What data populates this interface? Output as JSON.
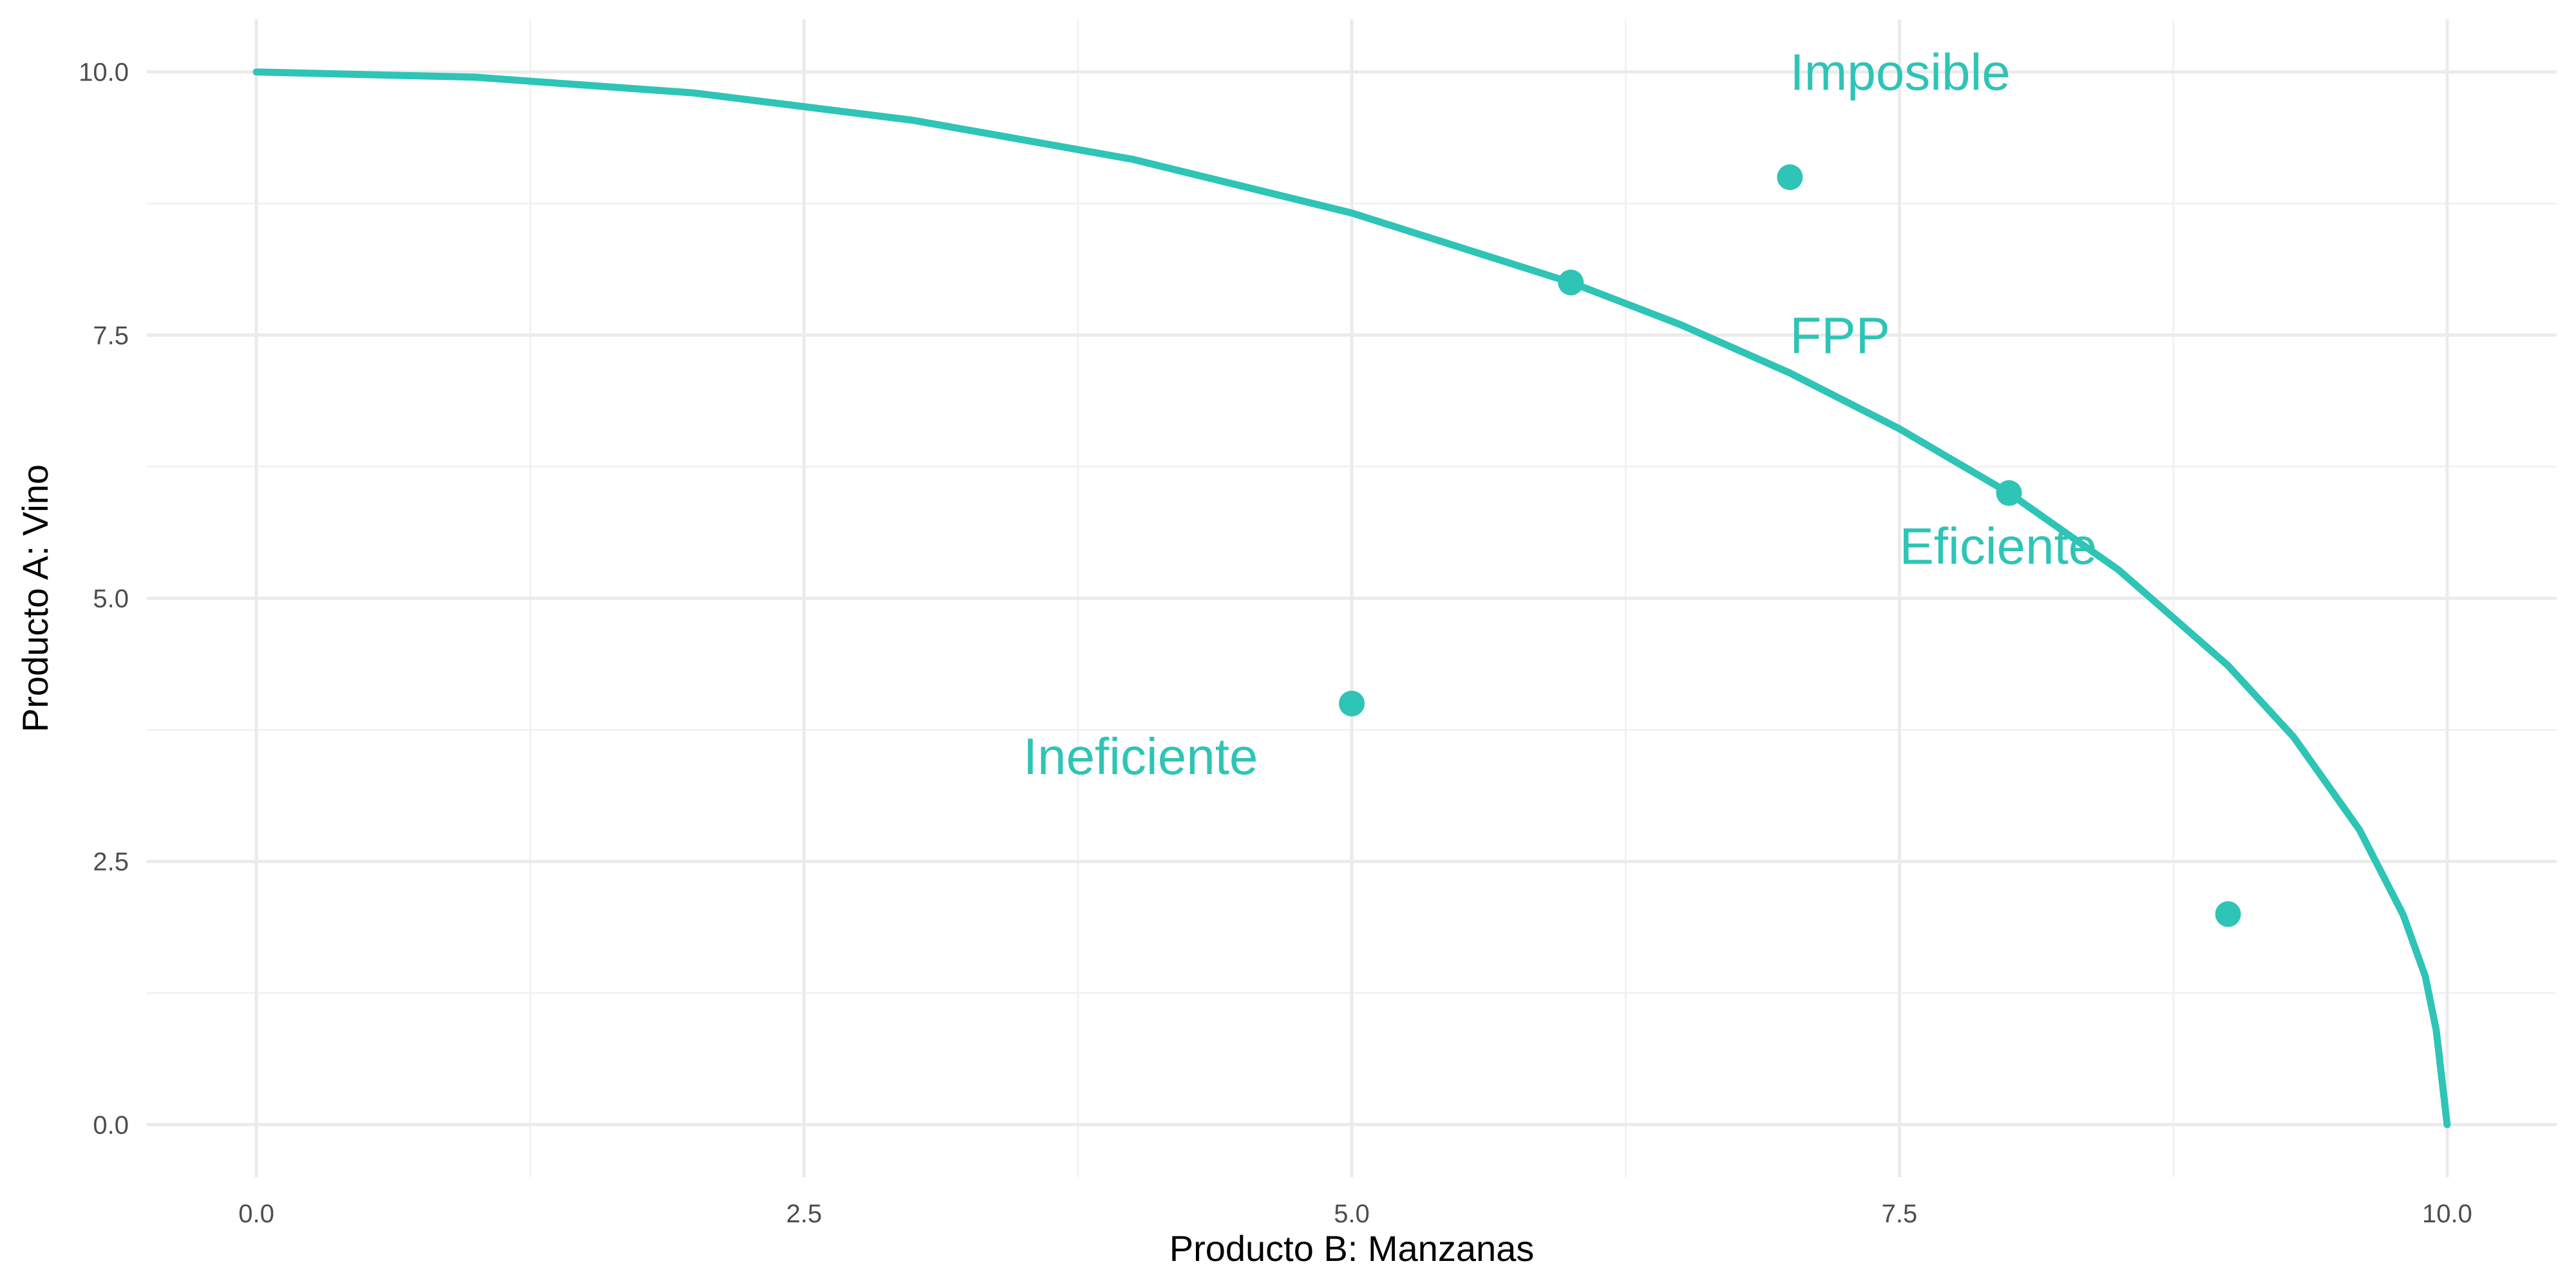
{
  "chart_data": {
    "type": "line",
    "title": "",
    "xlabel": "Producto B: Manzanas",
    "ylabel": "Producto A: Vino",
    "xlim": [
      -0.5,
      10.5
    ],
    "ylim": [
      -0.5,
      10.5
    ],
    "xticks": [
      0,
      2.5,
      5,
      7.5,
      10
    ],
    "yticks": [
      0,
      2.5,
      5,
      7.5,
      10
    ],
    "x_tick_labels": [
      "0.0",
      "2.5",
      "5.0",
      "7.5",
      "10.0"
    ],
    "y_tick_labels": [
      "0.0",
      "2.5",
      "5.0",
      "7.5",
      "10.0"
    ],
    "grid": true,
    "legend": "none",
    "color": "#2ec4b6",
    "series": [
      {
        "x": [
          0,
          1,
          2,
          3,
          4,
          5,
          6,
          6.5,
          7,
          7.5,
          8,
          8.5,
          9,
          9.3,
          9.6,
          9.8,
          9.9,
          9.95,
          10
        ],
        "y": [
          10,
          9.95,
          9.8,
          9.54,
          9.17,
          8.66,
          8,
          7.6,
          7.14,
          6.61,
          6,
          5.27,
          4.36,
          3.68,
          2.8,
          1.99,
          1.41,
          0.9,
          0
        ]
      }
    ],
    "points": [
      {
        "x": 6,
        "y": 8
      },
      {
        "x": 7,
        "y": 9
      },
      {
        "x": 8,
        "y": 6
      },
      {
        "x": 5,
        "y": 4
      },
      {
        "x": 9,
        "y": 2
      }
    ],
    "annotations": [
      {
        "text": "Imposible",
        "x": 7,
        "y": 10
      },
      {
        "text": "FPP",
        "x": 7,
        "y": 7.5
      },
      {
        "text": "Eficiente",
        "x": 7.5,
        "y": 5.5
      },
      {
        "text": "Ineficiente",
        "x": 3.5,
        "y": 3.5
      }
    ]
  }
}
